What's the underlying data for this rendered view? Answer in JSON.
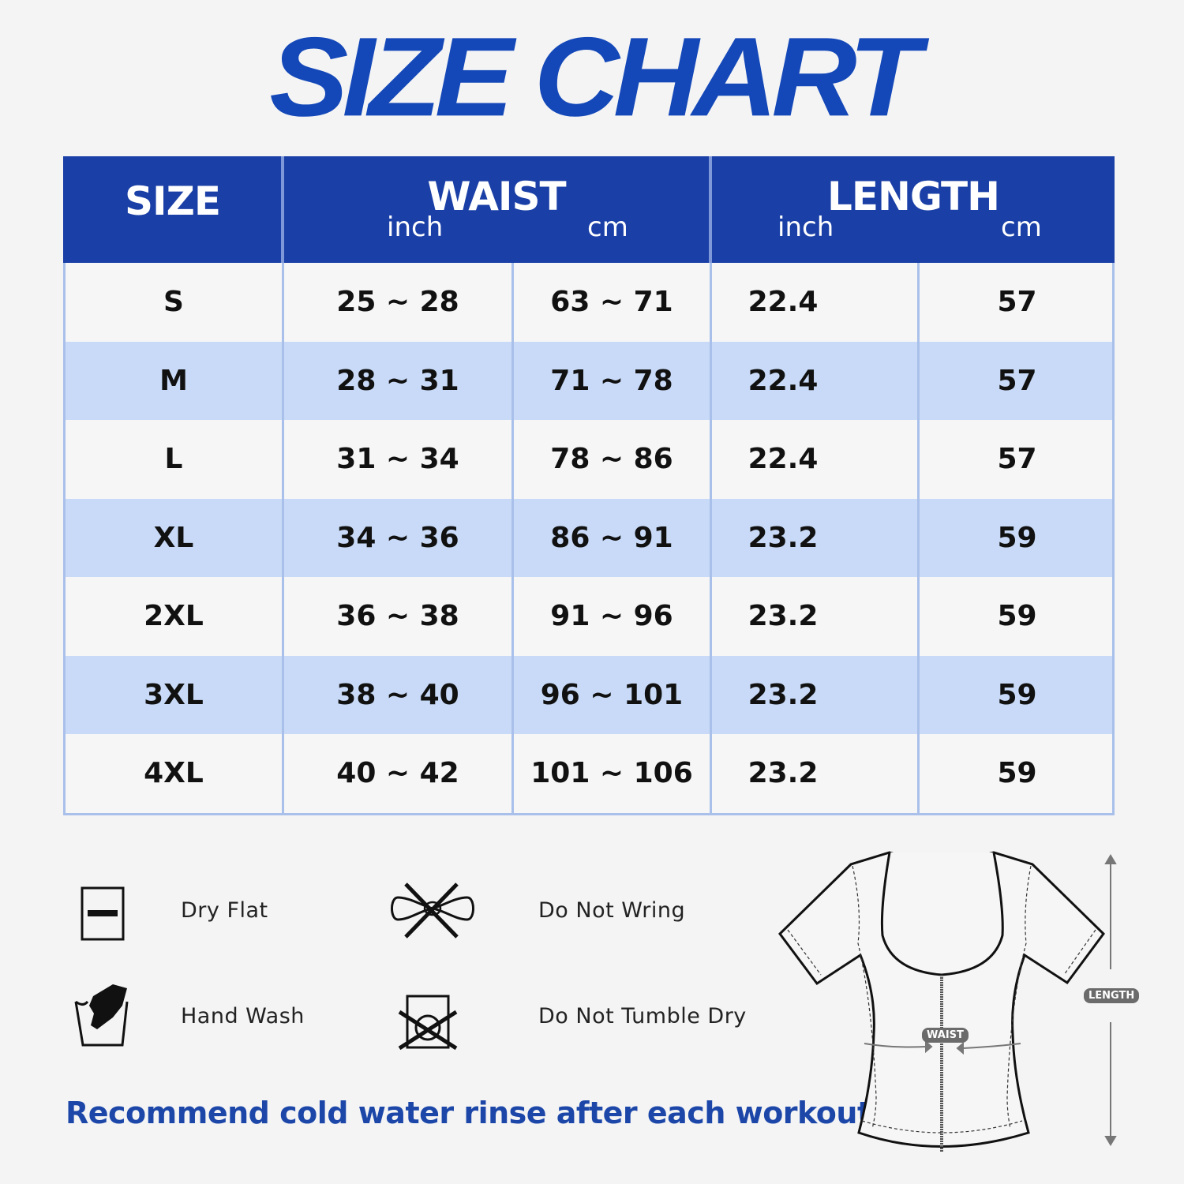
{
  "title": "SIZE CHART",
  "colors": {
    "title": "#1448b8",
    "header_bg": "#1a3fa6",
    "alt_row": "#c8daf7",
    "border": "#a9c0ea",
    "note": "#1c47a8"
  },
  "table": {
    "headers": {
      "size": "SIZE",
      "waist": {
        "label": "WAIST",
        "unit_inch": "inch",
        "unit_cm": "cm"
      },
      "length": {
        "label": "LENGTH",
        "unit_inch": "inch",
        "unit_cm": "cm"
      }
    },
    "rows": [
      {
        "size": "S",
        "waist_inch": "25 ~ 28",
        "waist_cm": "63 ~ 71",
        "length_inch": "22.4",
        "length_cm": "57"
      },
      {
        "size": "M",
        "waist_inch": "28 ~ 31",
        "waist_cm": "71 ~ 78",
        "length_inch": "22.4",
        "length_cm": "57"
      },
      {
        "size": "L",
        "waist_inch": "31 ~ 34",
        "waist_cm": "78 ~ 86",
        "length_inch": "22.4",
        "length_cm": "57"
      },
      {
        "size": "XL",
        "waist_inch": "34 ~ 36",
        "waist_cm": "86 ~ 91",
        "length_inch": "23.2",
        "length_cm": "59"
      },
      {
        "size": "2XL",
        "waist_inch": "36 ~ 38",
        "waist_cm": "91 ~ 96",
        "length_inch": "23.2",
        "length_cm": "59"
      },
      {
        "size": "3XL",
        "waist_inch": "38 ~ 40",
        "waist_cm": "96 ~ 101",
        "length_inch": "23.2",
        "length_cm": "59"
      },
      {
        "size": "4XL",
        "waist_inch": "40 ~ 42",
        "waist_cm": "101 ~ 106",
        "length_inch": "23.2",
        "length_cm": "59"
      }
    ]
  },
  "care": [
    {
      "icon": "dry-flat-icon",
      "label": "Dry Flat"
    },
    {
      "icon": "do-not-wring-icon",
      "label": "Do Not Wring"
    },
    {
      "icon": "hand-wash-icon",
      "label": "Hand Wash"
    },
    {
      "icon": "do-not-tumble-dry-icon",
      "label": "Do Not Tumble Dry"
    }
  ],
  "note": "Recommend cold water rinse after each workout.",
  "diagram": {
    "waist_label": "WAIST",
    "length_label": "LENGTH"
  }
}
